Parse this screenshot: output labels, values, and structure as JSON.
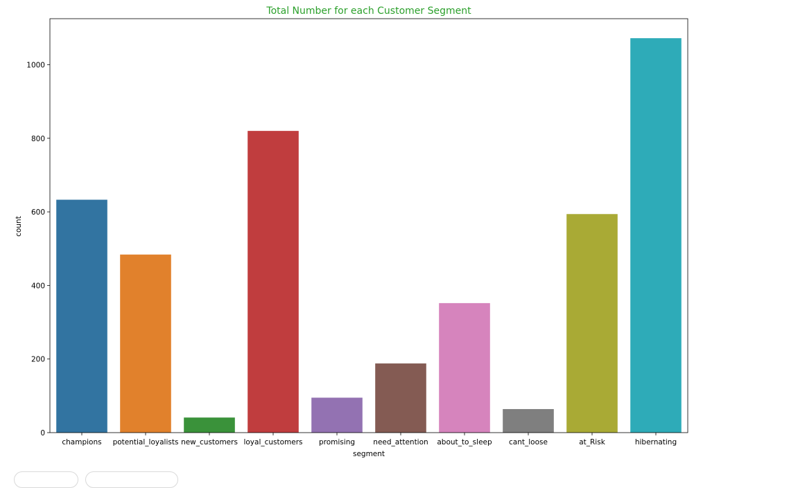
{
  "chart_data": {
    "type": "bar",
    "title": "Total Number for each Customer Segment",
    "xlabel": "segment",
    "ylabel": "count",
    "categories": [
      "champions",
      "potential_loyalists",
      "new_customers",
      "loyal_customers",
      "promising",
      "need_attention",
      "about_to_sleep",
      "cant_loose",
      "at_Risk",
      "hibernating"
    ],
    "values": [
      633,
      484,
      41,
      820,
      95,
      188,
      352,
      64,
      594,
      1072
    ],
    "colors": [
      "#3274a1",
      "#e1812c",
      "#3a923a",
      "#c03d3e",
      "#9372b2",
      "#845b53",
      "#d684bd",
      "#7f7f7f",
      "#a9aa35",
      "#2eabb8"
    ],
    "ylim": [
      0,
      1125
    ],
    "yticks": [
      0,
      200,
      400,
      600,
      800,
      1000
    ],
    "grid": false,
    "legend": "none"
  }
}
